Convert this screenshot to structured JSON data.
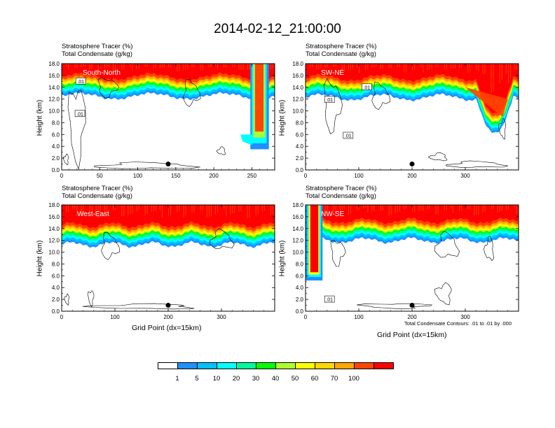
{
  "figure": {
    "title": "2014-02-12_21:00:00",
    "contour_note": "Total Condensate Contours: .01 to .01 by .000",
    "colorbar": {
      "labels": [
        "1",
        "5",
        "10",
        "20",
        "30",
        "40",
        "50",
        "60",
        "70",
        "100"
      ],
      "colors": [
        "#ffffff",
        "#1e90ff",
        "#00bfff",
        "#00ffff",
        "#00fa9a",
        "#00ff00",
        "#adff2f",
        "#ffff00",
        "#ffd700",
        "#ffa500",
        "#ff4500",
        "#ff0000"
      ]
    }
  },
  "chart_data": [
    {
      "type": "heatmap",
      "panel_label": "South-North",
      "label_line1": "Stratosphere Tracer   (%)",
      "label_line2": "Total Condensate   (g/kg)",
      "ylabel": "Height (km)",
      "xlabel": "",
      "xlim": [
        0,
        280
      ],
      "ylim": [
        0,
        18
      ],
      "xticks": [
        "0",
        "50",
        "100",
        "150",
        "200",
        "250"
      ],
      "xtick_values": [
        0,
        50,
        100,
        150,
        200,
        250
      ],
      "yticks": [
        "0.0",
        "2.0",
        "4.0",
        "6.0",
        "8.0",
        "10.0",
        "12.0",
        "14.0",
        "16.0",
        "18.0"
      ],
      "contour_labels": [
        ".01",
        ".01"
      ],
      "contour_label_pos": [
        [
          24,
          9.5
        ],
        [
          25,
          15.0
        ]
      ],
      "marker_x": 140,
      "marker_y": 1.0
    },
    {
      "type": "heatmap",
      "panel_label": "SW-NE",
      "label_line1": "Stratosphere Tracer   (%)",
      "label_line2": "Total Condensate   (g/kg)",
      "ylabel": "Height (km)",
      "xlabel": "",
      "xlim": [
        0,
        400
      ],
      "ylim": [
        0,
        18
      ],
      "xticks": [
        "0",
        "100",
        "200",
        "300"
      ],
      "xtick_values": [
        0,
        100,
        200,
        300
      ],
      "yticks": [
        "0.0",
        "2.0",
        "4.0",
        "6.0",
        "8.0",
        "10.0",
        "12.0",
        "14.0",
        "16.0",
        "18.0"
      ],
      "contour_labels": [
        ".01",
        ".01",
        ".01"
      ],
      "contour_label_pos": [
        [
          45,
          11.9
        ],
        [
          80,
          5.8
        ],
        [
          115,
          14.0
        ]
      ],
      "marker_x": 200,
      "marker_y": 1.0
    },
    {
      "type": "heatmap",
      "panel_label": "West-East",
      "label_line1": "Stratosphere Tracer   (%)",
      "label_line2": "Total Condensate   (g/kg)",
      "ylabel": "Height (km)",
      "xlabel": "Grid Point (dx=15km)",
      "xlim": [
        0,
        400
      ],
      "ylim": [
        0,
        18
      ],
      "xticks": [
        "0",
        "100",
        "200",
        "300"
      ],
      "xtick_values": [
        0,
        100,
        200,
        300
      ],
      "yticks": [
        "0.0",
        "2.0",
        "4.0",
        "6.0",
        "8.0",
        "10.0",
        "12.0",
        "14.0",
        "16.0",
        "18.0"
      ],
      "contour_labels": [],
      "contour_label_pos": [],
      "marker_x": 200,
      "marker_y": 1.0
    },
    {
      "type": "heatmap",
      "panel_label": "NW-SE",
      "label_line1": "Stratosphere Tracer   (%)",
      "label_line2": "Total Condensate   (g/kg)",
      "ylabel": "Height (km)",
      "xlabel": "Grid Point (dx=15km)",
      "xlim": [
        0,
        400
      ],
      "ylim": [
        0,
        18
      ],
      "xticks": [
        "0",
        "100",
        "200",
        "300"
      ],
      "xtick_values": [
        0,
        100,
        200,
        300
      ],
      "yticks": [
        "0.0",
        "2.0",
        "4.0",
        "6.0",
        "8.0",
        "10.0",
        "12.0",
        "14.0",
        "16.0",
        "18.0"
      ],
      "contour_labels": [
        ".01"
      ],
      "contour_label_pos": [
        [
          45,
          2.0
        ]
      ],
      "marker_x": 200,
      "marker_y": 1.0
    }
  ]
}
